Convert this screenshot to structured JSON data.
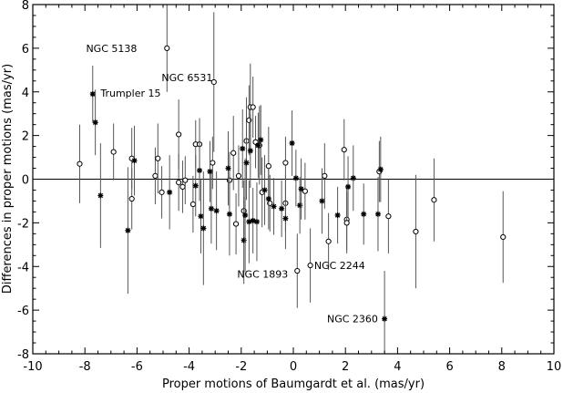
{
  "chart_data": {
    "type": "scatter",
    "title": "",
    "xlabel": "Proper motions of Baumgardt et al. (mas/yr)",
    "ylabel": "Differences in proper motions (mas/yr)",
    "xlim": [
      -10,
      10
    ],
    "ylim": [
      -8,
      8
    ],
    "xticks": [
      -10,
      -8,
      -6,
      -4,
      -2,
      0,
      2,
      4,
      6,
      8,
      10
    ],
    "yticks": [
      -8,
      -6,
      -4,
      -2,
      0,
      2,
      4,
      6,
      8
    ],
    "grid": false,
    "reference_line_y": 0,
    "colors": {
      "axes": "#000000",
      "marks": "#000000",
      "errorbars": "#555555",
      "background": "#ffffff"
    },
    "series": [
      {
        "marker": "open-circle",
        "points": [
          {
            "x": -8.2,
            "y": 0.7,
            "err": 1.8
          },
          {
            "x": -6.9,
            "y": 1.25,
            "err": 1.3
          },
          {
            "x": -6.2,
            "y": 0.95,
            "err": 1.4
          },
          {
            "x": -6.2,
            "y": -0.9,
            "err": 1.4
          },
          {
            "x": -5.3,
            "y": 0.15,
            "err": 1.3
          },
          {
            "x": -5.2,
            "y": 0.95,
            "err": 1.6
          },
          {
            "x": -5.05,
            "y": -0.6,
            "err": 1.2
          },
          {
            "x": -4.85,
            "y": 6.0,
            "err": 2.0
          },
          {
            "x": -4.4,
            "y": 2.05,
            "err": 1.6
          },
          {
            "x": -4.4,
            "y": -0.15,
            "err": 1.3
          },
          {
            "x": -4.25,
            "y": -0.35,
            "err": 1.2
          },
          {
            "x": -4.15,
            "y": -0.05,
            "err": 1.1
          },
          {
            "x": -3.85,
            "y": -1.15,
            "err": 1.3
          },
          {
            "x": -3.75,
            "y": 1.6,
            "err": 1.1
          },
          {
            "x": -3.6,
            "y": 1.6,
            "err": 1.2
          },
          {
            "x": -3.1,
            "y": 0.75,
            "err": 1.2
          },
          {
            "x": -3.05,
            "y": 4.45,
            "err": 3.2
          },
          {
            "x": -2.45,
            "y": -0.05,
            "err": 1.3
          },
          {
            "x": -2.3,
            "y": 1.2,
            "err": 1.7
          },
          {
            "x": -2.2,
            "y": -2.05,
            "err": 1.4
          },
          {
            "x": -2.1,
            "y": 0.15,
            "err": 1.4
          },
          {
            "x": -1.9,
            "y": -1.45,
            "err": 1.4
          },
          {
            "x": -1.8,
            "y": 1.75,
            "err": 2.0
          },
          {
            "x": -1.7,
            "y": 2.7,
            "err": 1.6
          },
          {
            "x": -1.65,
            "y": 3.3,
            "err": 2.0
          },
          {
            "x": -1.55,
            "y": 3.3,
            "err": 1.4
          },
          {
            "x": -1.45,
            "y": 1.7,
            "err": 1.2
          },
          {
            "x": -1.3,
            "y": 1.55,
            "err": 1.8
          },
          {
            "x": -1.2,
            "y": -0.6,
            "err": 1.6
          },
          {
            "x": -0.95,
            "y": 0.6,
            "err": 1.8
          },
          {
            "x": -0.9,
            "y": -1.1,
            "err": 1.3
          },
          {
            "x": -0.3,
            "y": 0.75,
            "err": 1.2
          },
          {
            "x": -0.3,
            "y": -1.1,
            "err": 1.3
          },
          {
            "x": 0.15,
            "y": -4.2,
            "err": 1.7
          },
          {
            "x": 0.45,
            "y": -0.55,
            "err": 1.3
          },
          {
            "x": 0.65,
            "y": -3.95,
            "err": 1.7
          },
          {
            "x": 1.2,
            "y": 0.15,
            "err": 1.5
          },
          {
            "x": 1.35,
            "y": -2.85,
            "err": 1.3
          },
          {
            "x": 1.95,
            "y": 1.35,
            "err": 1.4
          },
          {
            "x": 2.05,
            "y": -1.85,
            "err": 1.4
          },
          {
            "x": 2.05,
            "y": -2.0,
            "err": 1.4
          },
          {
            "x": 3.3,
            "y": 0.35,
            "err": 1.4
          },
          {
            "x": 3.65,
            "y": -1.7,
            "err": 1.7
          },
          {
            "x": 4.7,
            "y": -2.4,
            "err": 2.6
          },
          {
            "x": 5.4,
            "y": -0.95,
            "err": 1.9
          },
          {
            "x": 8.05,
            "y": -2.65,
            "err": 2.1
          }
        ]
      },
      {
        "marker": "asterisk",
        "points": [
          {
            "x": -7.7,
            "y": 3.9,
            "err": 1.3
          },
          {
            "x": -7.6,
            "y": 2.6,
            "err": 1.5
          },
          {
            "x": -7.4,
            "y": -0.75,
            "err": 2.4
          },
          {
            "x": -6.35,
            "y": -2.35,
            "err": 2.9
          },
          {
            "x": -6.1,
            "y": 0.85,
            "err": 1.6
          },
          {
            "x": -4.75,
            "y": -0.6,
            "err": 1.7
          },
          {
            "x": -3.75,
            "y": -0.3,
            "err": 1.4
          },
          {
            "x": -3.6,
            "y": 0.4,
            "err": 1.4
          },
          {
            "x": -3.55,
            "y": -1.7,
            "err": 1.7
          },
          {
            "x": -3.45,
            "y": -2.25,
            "err": 2.6
          },
          {
            "x": -3.2,
            "y": 0.35,
            "err": 1.4
          },
          {
            "x": -3.15,
            "y": -1.35,
            "err": 1.6
          },
          {
            "x": -2.95,
            "y": -1.45,
            "err": 1.8
          },
          {
            "x": -2.5,
            "y": 0.5,
            "err": 1.7
          },
          {
            "x": -2.45,
            "y": -1.6,
            "err": 1.9
          },
          {
            "x": -1.95,
            "y": 1.4,
            "err": 1.8
          },
          {
            "x": -1.9,
            "y": -2.8,
            "err": 2.0
          },
          {
            "x": -1.85,
            "y": -1.65,
            "err": 2.6
          },
          {
            "x": -1.8,
            "y": 0.75,
            "err": 1.7
          },
          {
            "x": -1.7,
            "y": -1.95,
            "err": 1.9
          },
          {
            "x": -1.65,
            "y": 1.3,
            "err": 1.7
          },
          {
            "x": -1.55,
            "y": -1.9,
            "err": 1.5
          },
          {
            "x": -1.4,
            "y": -1.95,
            "err": 1.8
          },
          {
            "x": -1.35,
            "y": 1.55,
            "err": 1.5
          },
          {
            "x": -1.25,
            "y": 1.8,
            "err": 1.6
          },
          {
            "x": -1.1,
            "y": -0.5,
            "err": 1.6
          },
          {
            "x": -0.95,
            "y": -0.9,
            "err": 1.4
          },
          {
            "x": -0.75,
            "y": -1.25,
            "err": 1.3
          },
          {
            "x": -0.45,
            "y": -1.35,
            "err": 1.3
          },
          {
            "x": -0.3,
            "y": -1.8,
            "err": 1.4
          },
          {
            "x": -0.05,
            "y": 1.65,
            "err": 1.5
          },
          {
            "x": 0.1,
            "y": 0.05,
            "err": 1.3
          },
          {
            "x": 0.25,
            "y": -1.2,
            "err": 1.3
          },
          {
            "x": 0.3,
            "y": -0.45,
            "err": 1.4
          },
          {
            "x": 1.1,
            "y": -1.0,
            "err": 1.5
          },
          {
            "x": 1.7,
            "y": -1.65,
            "err": 1.3
          },
          {
            "x": 2.1,
            "y": -0.35,
            "err": 1.4
          },
          {
            "x": 2.3,
            "y": 0.05,
            "err": 1.5
          },
          {
            "x": 2.7,
            "y": -1.6,
            "err": 1.4
          },
          {
            "x": 3.25,
            "y": -1.6,
            "err": 1.7
          },
          {
            "x": 3.35,
            "y": 0.45,
            "err": 1.5
          },
          {
            "x": 3.5,
            "y": -6.4,
            "err": 2.2
          }
        ]
      }
    ],
    "annotations": [
      {
        "text": "NGC 5138",
        "x": -6.0,
        "y": 6.0,
        "anchor": "end"
      },
      {
        "text": "NGC 6531",
        "x": -3.1,
        "y": 4.65,
        "anchor": "end"
      },
      {
        "text": "Trumpler 15",
        "x": -7.4,
        "y": 3.95,
        "anchor": "start"
      },
      {
        "text": "NGC 1893",
        "x": -0.2,
        "y": -4.35,
        "anchor": "end"
      },
      {
        "text": "NGC 2244",
        "x": 0.8,
        "y": -3.95,
        "anchor": "start"
      },
      {
        "text": "NGC 2360",
        "x": 3.25,
        "y": -6.4,
        "anchor": "end"
      }
    ]
  }
}
